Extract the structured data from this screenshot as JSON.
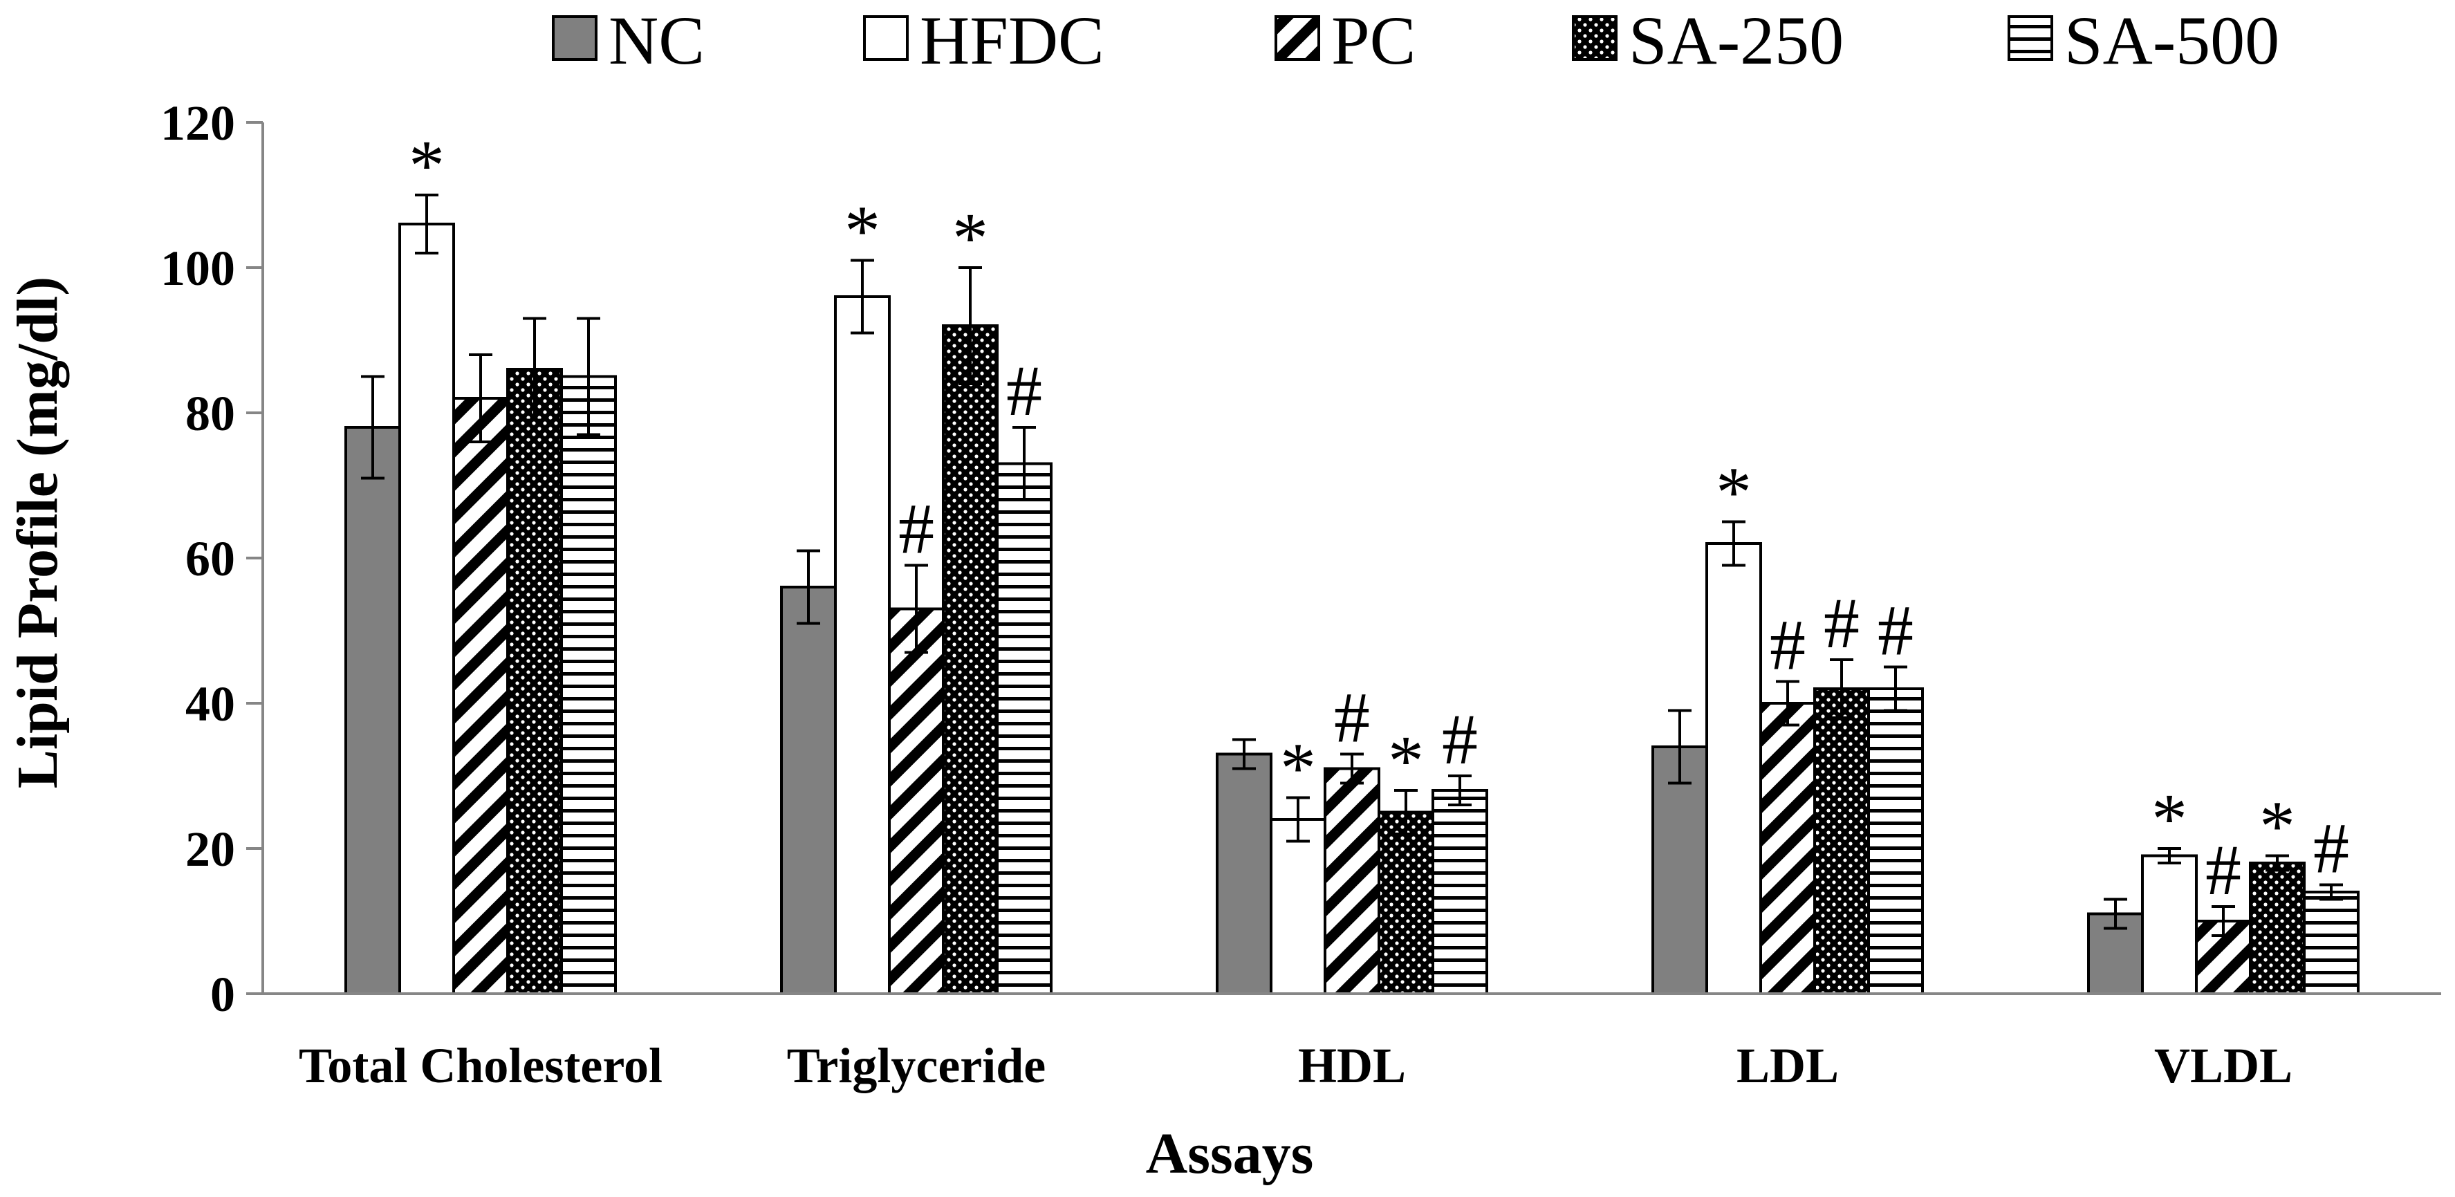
{
  "chart_data": {
    "type": "bar",
    "title": "",
    "xlabel": "Assays",
    "ylabel": "Lipid Profile (mg/dl)",
    "ylim": [
      0,
      120
    ],
    "yticks": [
      0,
      20,
      40,
      60,
      80,
      100,
      120
    ],
    "grid": false,
    "legend_position": "top",
    "categories": [
      "Total Cholesterol",
      "Triglyceride",
      "HDL",
      "LDL",
      "VLDL"
    ],
    "series": [
      {
        "name": "NC",
        "pattern": "solid-gray",
        "values": [
          78,
          56,
          33,
          34,
          11
        ],
        "errors": [
          7,
          5,
          2,
          5,
          2
        ],
        "annotations": [
          "",
          "",
          "",
          "",
          ""
        ]
      },
      {
        "name": "HFDC",
        "pattern": "white",
        "values": [
          106,
          96,
          24,
          62,
          19
        ],
        "errors": [
          4,
          5,
          3,
          3,
          1
        ],
        "annotations": [
          "*",
          "*",
          "*",
          "*",
          "*"
        ]
      },
      {
        "name": "PC",
        "pattern": "diagonal",
        "values": [
          82,
          53,
          31,
          40,
          10
        ],
        "errors": [
          6,
          6,
          2,
          3,
          2
        ],
        "annotations": [
          "",
          "#",
          "#",
          "#",
          "#"
        ]
      },
      {
        "name": "SA-250",
        "pattern": "dots",
        "values": [
          86,
          92,
          25,
          42,
          18
        ],
        "errors": [
          7,
          8,
          3,
          4,
          1
        ],
        "annotations": [
          "",
          "*",
          "*",
          "#",
          "*"
        ]
      },
      {
        "name": "SA-500",
        "pattern": "horizontal",
        "values": [
          85,
          73,
          28,
          42,
          14
        ],
        "errors": [
          8,
          5,
          2,
          3,
          1
        ],
        "annotations": [
          "",
          "#",
          "#",
          "#",
          "#"
        ]
      }
    ],
    "colors": {
      "NC": "#808080",
      "HFDC": "#ffffff",
      "axis": "#868686",
      "stroke": "#000000"
    }
  }
}
